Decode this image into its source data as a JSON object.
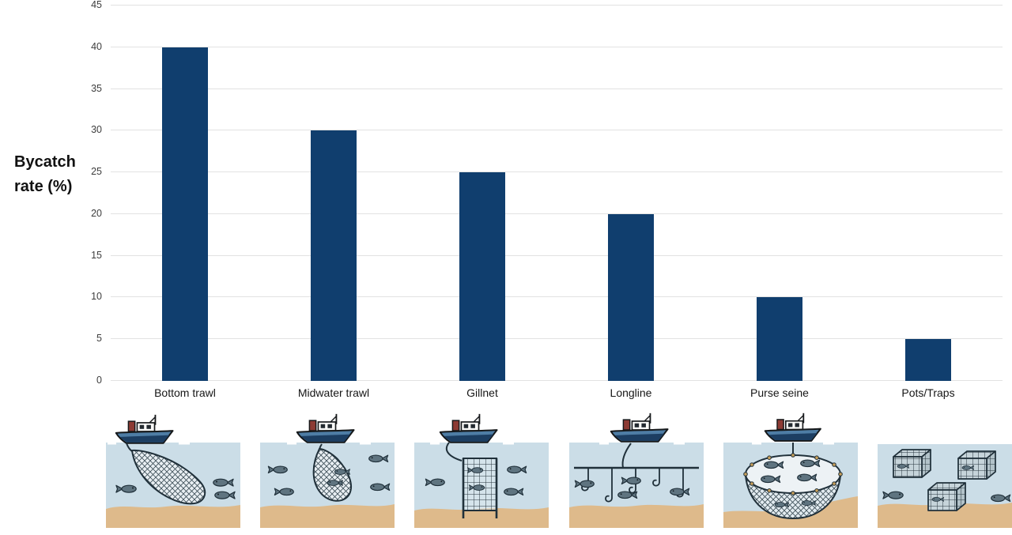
{
  "axis": {
    "ylabel_line1": "Bycatch",
    "ylabel_line2": "rate (%)"
  },
  "chart_data": {
    "type": "bar",
    "title": "",
    "xlabel": "",
    "ylabel": "Bycatch rate (%)",
    "categories": [
      "Bottom trawl",
      "Midwater trawl",
      "Gillnet",
      "Longline",
      "Purse seine",
      "Pots/Traps"
    ],
    "values": [
      40,
      30,
      25,
      20,
      10,
      5
    ],
    "ylim": [
      0,
      45
    ],
    "yticks": [
      0,
      5,
      10,
      15,
      20,
      25,
      30,
      35,
      40,
      45
    ],
    "grid": true,
    "legend_position": "none",
    "bar_color": "#103e6e",
    "gridline_color": "#e2e2e2"
  },
  "illustrations": [
    {
      "name": "bottom-trawl-illustration"
    },
    {
      "name": "midwater-trawl-illustration"
    },
    {
      "name": "gillnet-illustration"
    },
    {
      "name": "longline-illustration"
    },
    {
      "name": "purse-seine-illustration"
    },
    {
      "name": "pots-traps-illustration"
    }
  ],
  "palette": {
    "water": "#cbdde7",
    "sand": "#deba8b",
    "fish": "#5f7480",
    "hull": "#4e7da5",
    "hull_band": "#1c3e62",
    "funnel": "#8d3b34",
    "net_line": "#20303a"
  }
}
